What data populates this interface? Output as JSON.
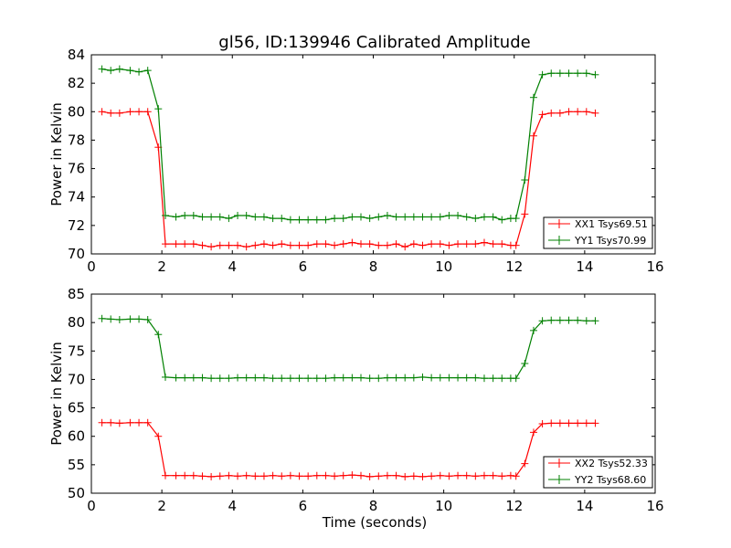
{
  "chart_data": [
    {
      "type": "line",
      "title": "gl56, ID:139946 Calibrated Amplitude",
      "xlabel": "",
      "ylabel": "Power in Kelvin",
      "xlim": [
        0,
        16
      ],
      "ylim": [
        70,
        84
      ],
      "xticks": [
        0,
        2,
        4,
        6,
        8,
        10,
        12,
        14,
        16
      ],
      "yticks": [
        70,
        72,
        74,
        76,
        78,
        80,
        82,
        84
      ],
      "legend_position": "lower-right",
      "x": [
        0.3,
        0.55,
        0.8,
        1.1,
        1.35,
        1.6,
        1.9,
        2.1,
        2.4,
        2.65,
        2.9,
        3.15,
        3.4,
        3.65,
        3.9,
        4.15,
        4.4,
        4.65,
        4.9,
        5.15,
        5.4,
        5.65,
        5.9,
        6.15,
        6.4,
        6.65,
        6.9,
        7.15,
        7.4,
        7.65,
        7.9,
        8.15,
        8.4,
        8.65,
        8.9,
        9.15,
        9.4,
        9.65,
        9.9,
        10.15,
        10.4,
        10.65,
        10.9,
        11.15,
        11.4,
        11.65,
        11.9,
        12.05,
        12.3,
        12.55,
        12.8,
        13.05,
        13.3,
        13.55,
        13.8,
        14.05,
        14.3
      ],
      "series": [
        {
          "name": "XX1 Tsys69.51",
          "color": "#ff0000",
          "values": [
            80.0,
            79.9,
            79.9,
            80.0,
            80.0,
            80.0,
            77.5,
            70.7,
            70.7,
            70.7,
            70.7,
            70.6,
            70.5,
            70.6,
            70.6,
            70.6,
            70.5,
            70.6,
            70.7,
            70.6,
            70.7,
            70.6,
            70.6,
            70.6,
            70.7,
            70.7,
            70.6,
            70.7,
            70.8,
            70.7,
            70.7,
            70.6,
            70.6,
            70.7,
            70.5,
            70.7,
            70.6,
            70.7,
            70.7,
            70.6,
            70.7,
            70.7,
            70.7,
            70.8,
            70.7,
            70.7,
            70.6,
            70.6,
            72.8,
            78.3,
            79.8,
            79.9,
            79.9,
            80.0,
            80.0,
            80.0,
            79.9
          ]
        },
        {
          "name": "YY1 Tsys70.99",
          "color": "#008000",
          "values": [
            83.0,
            82.9,
            83.0,
            82.9,
            82.8,
            82.9,
            80.2,
            72.7,
            72.6,
            72.7,
            72.7,
            72.6,
            72.6,
            72.6,
            72.5,
            72.7,
            72.7,
            72.6,
            72.6,
            72.5,
            72.5,
            72.4,
            72.4,
            72.4,
            72.4,
            72.4,
            72.5,
            72.5,
            72.6,
            72.6,
            72.5,
            72.6,
            72.7,
            72.6,
            72.6,
            72.6,
            72.6,
            72.6,
            72.6,
            72.7,
            72.7,
            72.6,
            72.5,
            72.6,
            72.6,
            72.4,
            72.5,
            72.5,
            75.2,
            81.0,
            82.6,
            82.7,
            82.7,
            82.7,
            82.7,
            82.7,
            82.6
          ]
        }
      ]
    },
    {
      "type": "line",
      "title": "",
      "xlabel": "Time (seconds)",
      "ylabel": "Power in Kelvin",
      "xlim": [
        0,
        16
      ],
      "ylim": [
        50,
        85
      ],
      "xticks": [
        0,
        2,
        4,
        6,
        8,
        10,
        12,
        14,
        16
      ],
      "yticks": [
        50,
        55,
        60,
        65,
        70,
        75,
        80,
        85
      ],
      "legend_position": "lower-right",
      "x": [
        0.3,
        0.55,
        0.8,
        1.1,
        1.35,
        1.6,
        1.9,
        2.1,
        2.4,
        2.65,
        2.9,
        3.15,
        3.4,
        3.65,
        3.9,
        4.15,
        4.4,
        4.65,
        4.9,
        5.15,
        5.4,
        5.65,
        5.9,
        6.15,
        6.4,
        6.65,
        6.9,
        7.15,
        7.4,
        7.65,
        7.9,
        8.15,
        8.4,
        8.65,
        8.9,
        9.15,
        9.4,
        9.65,
        9.9,
        10.15,
        10.4,
        10.65,
        10.9,
        11.15,
        11.4,
        11.65,
        11.9,
        12.05,
        12.3,
        12.55,
        12.8,
        13.05,
        13.3,
        13.55,
        13.8,
        14.05,
        14.3
      ],
      "series": [
        {
          "name": "XX2 Tsys52.33",
          "color": "#ff0000",
          "values": [
            62.4,
            62.4,
            62.3,
            62.4,
            62.4,
            62.4,
            60.0,
            53.1,
            53.1,
            53.1,
            53.1,
            53.0,
            52.9,
            53.0,
            53.1,
            53.0,
            53.1,
            53.0,
            53.0,
            53.1,
            53.0,
            53.1,
            53.0,
            53.0,
            53.1,
            53.1,
            53.0,
            53.1,
            53.2,
            53.1,
            52.9,
            53.0,
            53.1,
            53.1,
            52.9,
            53.0,
            52.9,
            53.0,
            53.1,
            53.0,
            53.1,
            53.1,
            53.0,
            53.1,
            53.1,
            53.0,
            53.1,
            53.0,
            55.2,
            60.7,
            62.2,
            62.3,
            62.3,
            62.3,
            62.3,
            62.3,
            62.3
          ]
        },
        {
          "name": "YY2 Tsys68.60",
          "color": "#008000",
          "values": [
            80.7,
            80.6,
            80.5,
            80.6,
            80.6,
            80.5,
            77.9,
            70.4,
            70.3,
            70.3,
            70.3,
            70.3,
            70.2,
            70.2,
            70.2,
            70.3,
            70.3,
            70.3,
            70.3,
            70.2,
            70.2,
            70.2,
            70.2,
            70.2,
            70.2,
            70.2,
            70.3,
            70.3,
            70.3,
            70.3,
            70.2,
            70.2,
            70.3,
            70.3,
            70.3,
            70.3,
            70.4,
            70.3,
            70.3,
            70.3,
            70.3,
            70.3,
            70.3,
            70.2,
            70.2,
            70.2,
            70.2,
            70.2,
            72.8,
            78.6,
            80.3,
            80.4,
            80.4,
            80.4,
            80.4,
            80.3,
            80.3
          ]
        }
      ]
    }
  ]
}
